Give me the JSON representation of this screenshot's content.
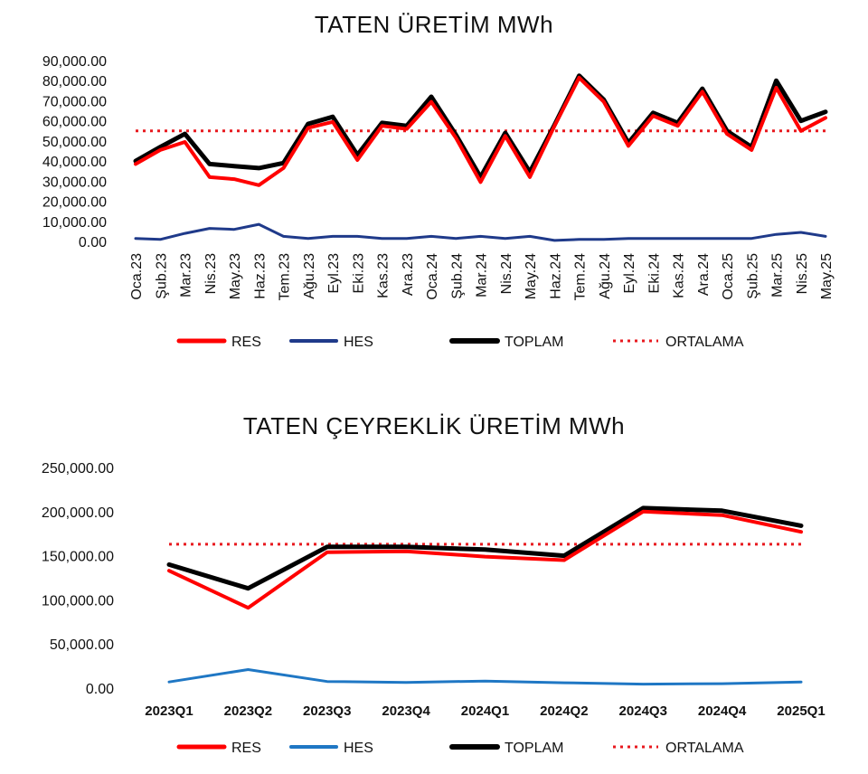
{
  "chart_data": [
    {
      "type": "line",
      "title": "TATEN ÜRETİM MWh",
      "categories": [
        "Oca.23",
        "Şub.23",
        "Mar.23",
        "Nis.23",
        "May.23",
        "Haz.23",
        "Tem.23",
        "Ağu.23",
        "Eyl.23",
        "Eki.23",
        "Kas.23",
        "Ara.23",
        "Oca.24",
        "Şub.24",
        "Mar.24",
        "Nis.24",
        "May.24",
        "Haz.24",
        "Tem.24",
        "Ağu.24",
        "Eyl.24",
        "Eki.24",
        "Kas.24",
        "Ara.24",
        "Oca.25",
        "Şub.25",
        "Mar.25",
        "Nis.25",
        "May.25"
      ],
      "y_ticks": [
        "0.00",
        "10,000.00",
        "20,000.00",
        "30,000.00",
        "40,000.00",
        "50,000.00",
        "60,000.00",
        "70,000.00",
        "80,000.00",
        "90,000.00"
      ],
      "ylim": [
        0,
        90000
      ],
      "series": [
        {
          "name": "RES",
          "color": "#ff0000",
          "values": [
            38500,
            45500,
            49500,
            32000,
            31000,
            28000,
            36500,
            56500,
            59500,
            40500,
            57500,
            56000,
            69500,
            51500,
            29500,
            52500,
            32000,
            57500,
            81500,
            69500,
            47500,
            62500,
            57500,
            74500,
            53500,
            45500,
            76500,
            55000,
            61500
          ]
        },
        {
          "name": "HES",
          "color": "#1f3a8a",
          "values": [
            1500,
            1000,
            4000,
            6500,
            6000,
            8500,
            2500,
            1500,
            2500,
            2500,
            1500,
            1500,
            2500,
            1500,
            2500,
            1500,
            2500,
            500,
            1000,
            1000,
            1500,
            1500,
            1500,
            1500,
            1500,
            1500,
            3500,
            4500,
            2500
          ]
        },
        {
          "name": "TOPLAM",
          "color": "#000000",
          "values": [
            40000,
            47000,
            53500,
            38500,
            37500,
            36500,
            39000,
            58500,
            62000,
            43000,
            59000,
            57500,
            72000,
            53000,
            32000,
            54000,
            34500,
            58000,
            82500,
            70500,
            49000,
            64000,
            59000,
            76000,
            55000,
            47000,
            80000,
            60000,
            64500
          ]
        }
      ],
      "reference": {
        "name": "ORTALAMA",
        "color": "#e8191f",
        "value": 55000
      }
    },
    {
      "type": "line",
      "title": "TATEN ÇEYREKLİK ÜRETİM MWh",
      "categories": [
        "2023Q1",
        "2023Q2",
        "2023Q3",
        "2023Q4",
        "2024Q1",
        "2024Q2",
        "2024Q3",
        "2024Q4",
        "2025Q1"
      ],
      "y_ticks": [
        "0.00",
        "50,000.00",
        "100,000.00",
        "150,000.00",
        "200,000.00",
        "250,000.00"
      ],
      "ylim": [
        0,
        250000
      ],
      "series": [
        {
          "name": "RES",
          "color": "#ff0000",
          "values": [
            133000,
            91000,
            154000,
            155000,
            149000,
            145000,
            200000,
            196000,
            177000
          ]
        },
        {
          "name": "HES",
          "color": "#1f77c4",
          "values": [
            7000,
            21000,
            7500,
            6500,
            8000,
            6000,
            4500,
            5000,
            7000
          ]
        },
        {
          "name": "TOPLAM",
          "color": "#000000",
          "values": [
            140000,
            113000,
            160000,
            160000,
            157000,
            150000,
            204000,
            201000,
            184000
          ]
        }
      ],
      "reference": {
        "name": "ORTALAMA",
        "color": "#e8191f",
        "value": 163000
      }
    }
  ]
}
